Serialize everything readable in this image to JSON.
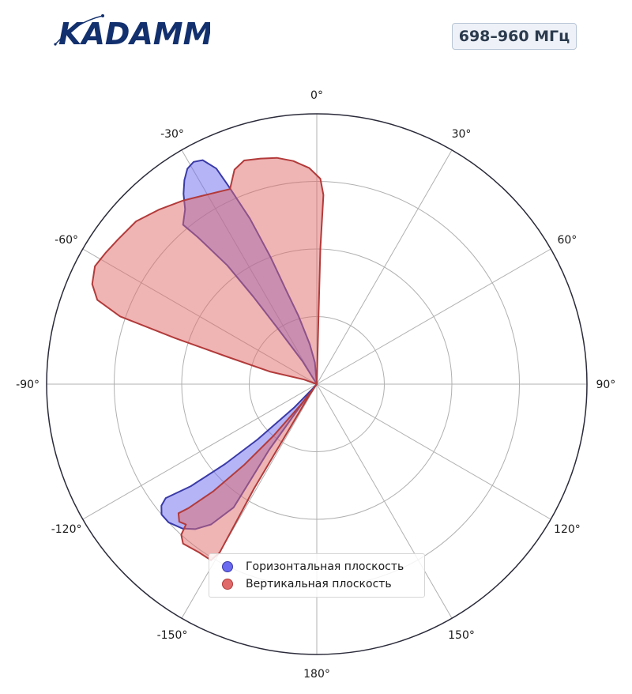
{
  "header": {
    "logo_text": "KADAMM",
    "freq_badge": "698–960 МГц"
  },
  "colors": {
    "horizontal": "#6a6af0",
    "horizontal_edge": "#3a3aa8",
    "vertical": "#e06a6a",
    "vertical_edge": "#b33a3a",
    "grid": "#b0b0b0",
    "frame": "#2a2a3a",
    "logo": "#12306e"
  },
  "chart_data": {
    "type": "polar",
    "angle_ticks": [
      "0°",
      "30°",
      "60°",
      "90°",
      "120°",
      "150°",
      "180°",
      "-150°",
      "-120°",
      "-90°",
      "-60°",
      "-30°"
    ],
    "angle_tick_values": [
      0,
      30,
      60,
      90,
      120,
      150,
      180,
      -150,
      -120,
      -90,
      -60,
      -30
    ],
    "radial_range": [
      0,
      1
    ],
    "radial_gridlines": [
      0.25,
      0.5,
      0.75,
      1.0
    ],
    "grid": true,
    "legend_placement": "bottom-center",
    "series": [
      {
        "name": "Горизонтальная плоскость",
        "color_key": "horizontal",
        "points": [
          [
            -1,
            0.0
          ],
          [
            -5,
            0.08
          ],
          [
            -10,
            0.15
          ],
          [
            -15,
            0.26
          ],
          [
            -18,
            0.36
          ],
          [
            -20,
            0.5
          ],
          [
            -22,
            0.66
          ],
          [
            -24,
            0.8
          ],
          [
            -25,
            0.88
          ],
          [
            -27,
            0.93
          ],
          [
            -29,
            0.94
          ],
          [
            -31,
            0.93
          ],
          [
            -33,
            0.9
          ],
          [
            -35,
            0.86
          ],
          [
            -37,
            0.81
          ],
          [
            -40,
            0.77
          ],
          [
            -39,
            0.7
          ],
          [
            -37,
            0.55
          ],
          [
            -36,
            0.4
          ],
          [
            -35,
            0.25
          ],
          [
            -32,
            0.1
          ],
          [
            -20,
            0.0
          ],
          [
            -140,
            0.03
          ],
          [
            -144,
            0.3
          ],
          [
            -146,
            0.55
          ],
          [
            -143,
            0.65
          ],
          [
            -140,
            0.7
          ],
          [
            -137,
            0.73
          ],
          [
            -133,
            0.75
          ],
          [
            -130,
            0.75
          ],
          [
            -128,
            0.73
          ],
          [
            -127,
            0.7
          ],
          [
            -129,
            0.6
          ],
          [
            -131,
            0.45
          ],
          [
            -133,
            0.3
          ],
          [
            -136,
            0.12
          ],
          [
            -138,
            0.02
          ]
        ]
      },
      {
        "name": "Вертикальная плоскость",
        "color_key": "vertical",
        "points": [
          [
            1,
            0.0
          ],
          [
            1.5,
            0.25
          ],
          [
            1.5,
            0.5
          ],
          [
            2,
            0.7
          ],
          [
            1,
            0.76
          ],
          [
            -2,
            0.8
          ],
          [
            -6,
            0.83
          ],
          [
            -10,
            0.85
          ],
          [
            -14,
            0.86
          ],
          [
            -18,
            0.87
          ],
          [
            -21,
            0.85
          ],
          [
            -24,
            0.79
          ],
          [
            -30,
            0.81
          ],
          [
            -36,
            0.84
          ],
          [
            -42,
            0.87
          ],
          [
            -48,
            0.9
          ],
          [
            -54,
            0.91
          ],
          [
            -58,
            0.92
          ],
          [
            -62,
            0.93
          ],
          [
            -66,
            0.91
          ],
          [
            -69,
            0.87
          ],
          [
            -71,
            0.77
          ],
          [
            -72,
            0.55
          ],
          [
            -73,
            0.35
          ],
          [
            -75,
            0.18
          ],
          [
            -70,
            0.05
          ],
          [
            -40,
            0.0
          ],
          [
            -146,
            0.05
          ],
          [
            -149,
            0.45
          ],
          [
            -150,
            0.72
          ],
          [
            -149,
            0.76
          ],
          [
            -145,
            0.76
          ],
          [
            -140,
            0.77
          ],
          [
            -138,
            0.75
          ],
          [
            -137,
            0.71
          ],
          [
            -135,
            0.72
          ],
          [
            -133,
            0.7
          ],
          [
            -134,
            0.66
          ],
          [
            -136,
            0.55
          ],
          [
            -138,
            0.4
          ],
          [
            -140,
            0.25
          ],
          [
            -142,
            0.1
          ],
          [
            -144,
            0.02
          ]
        ]
      }
    ]
  }
}
